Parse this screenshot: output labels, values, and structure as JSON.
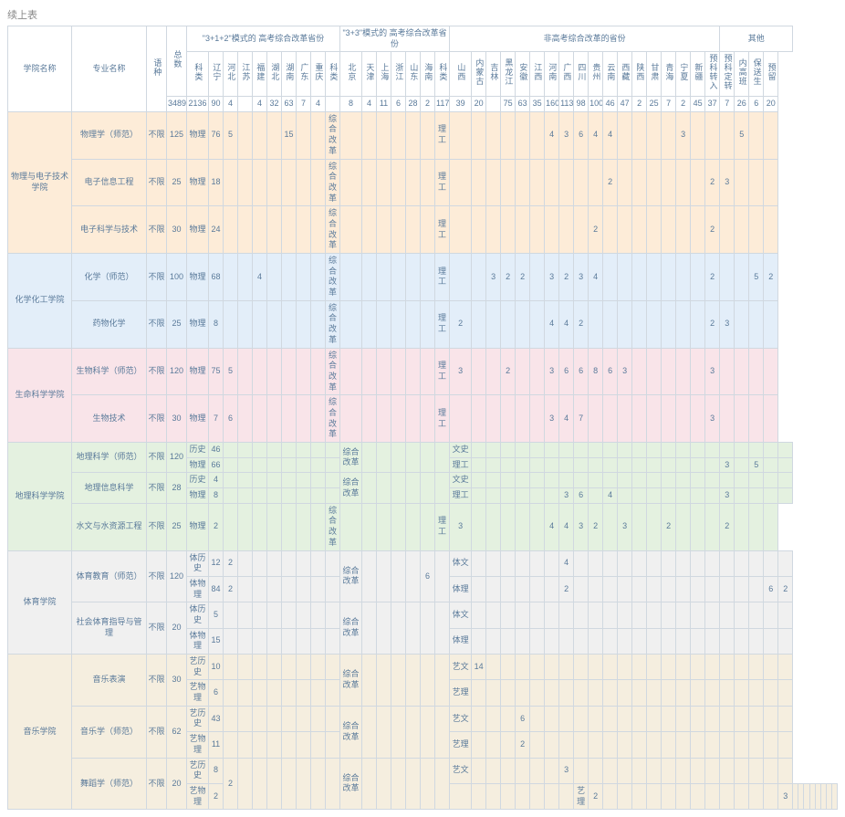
{
  "caption": "续上表",
  "background": "#ffffff",
  "border_color": "#d0d8e0",
  "text_color": "#5a7a9a",
  "font_size": 9,
  "group_colors": {
    "orange": "#fdecd8",
    "blue": "#e3eef9",
    "pink": "#f9e4e9",
    "green": "#e4f1e0",
    "gray": "#f0f0f0",
    "tan": "#f5eedf"
  },
  "headers": {
    "college": "学院名称",
    "major": "专业名称",
    "lang": "语种",
    "total": "总数",
    "g1": "\"3+1+2\"模式的\n高考综合改革省份",
    "g2": "\"3+3\"模式的\n高考综合改革省份",
    "g3": "非高考综合改革的省份",
    "g4": "其他",
    "subtype": "科类",
    "total_sum": "3489",
    "p1": [
      "辽宁",
      "河北",
      "江苏",
      "福建",
      "湖北",
      "湖南",
      "广东",
      "重庆"
    ],
    "p1_sum": [
      "2136",
      "90",
      "4",
      "",
      "4",
      "32",
      "63",
      "7",
      "4"
    ],
    "p2": [
      "北京",
      "天津",
      "上海",
      "浙江",
      "山东",
      "海南"
    ],
    "p2_sum": [
      "8",
      "4",
      "11",
      "6",
      "28",
      "2"
    ],
    "p3": [
      "山西",
      "内蒙古",
      "吉林",
      "黑龙江",
      "安徽",
      "江西",
      "河南",
      "广西",
      "四川",
      "贵州",
      "云南",
      "西藏",
      "陕西",
      "甘肃",
      "青海",
      "宁夏",
      "新疆"
    ],
    "p3_sum": [
      "117",
      "39",
      "20",
      "",
      "75",
      "63",
      "35",
      "160",
      "113",
      "98",
      "100",
      "46",
      "47",
      "2",
      "25",
      "7",
      "2",
      "45"
    ],
    "p4": [
      "预科转入",
      "预科定转",
      "内高班",
      "保送生",
      "预留"
    ],
    "p4_sum": [
      "37",
      "7",
      "26",
      "6",
      "20"
    ]
  },
  "rows": [
    {
      "college": "物理与电子技术学院",
      "span": 3,
      "major": "物理学（师范）",
      "lang": "不限",
      "total": "125",
      "type": "物理",
      "g1": [
        "76",
        "5",
        "",
        "",
        "",
        "15",
        "",
        ""
      ],
      "g2t": "综合改革",
      "g2": [
        "",
        "",
        "",
        "",
        "",
        ""
      ],
      "g3t": "理工",
      "g3": [
        "",
        "",
        "",
        "",
        "",
        "",
        "4",
        "3",
        "6",
        "4",
        "4",
        "",
        "",
        "",
        "",
        "3"
      ],
      "g4": [
        "",
        "",
        "5",
        "",
        ""
      ],
      "cls": "bg-orange"
    },
    {
      "major": "电子信息工程",
      "lang": "不限",
      "total": "25",
      "type": "物理",
      "g1": [
        "18",
        "",
        "",
        "",
        "",
        "",
        "",
        ""
      ],
      "g2t": "综合改革",
      "g2": [
        "",
        "",
        "",
        "",
        "",
        ""
      ],
      "g3t": "理工",
      "g3": [
        "",
        "",
        "",
        "",
        "",
        "",
        "",
        "",
        "",
        "",
        "2",
        "",
        "",
        "",
        "",
        ""
      ],
      "g4": [
        "2",
        "3",
        "",
        "",
        ""
      ],
      "cls": "bg-orange"
    },
    {
      "major": "电子科学与技术",
      "lang": "不限",
      "total": "30",
      "type": "物理",
      "g1": [
        "24",
        "",
        "",
        "",
        "",
        "",
        "",
        ""
      ],
      "g2t": "综合改革",
      "g2": [
        "",
        "",
        "",
        "",
        "",
        ""
      ],
      "g3t": "理工",
      "g3": [
        "",
        "",
        "",
        "",
        "",
        "",
        "",
        "",
        "",
        "2",
        "",
        "",
        "",
        "",
        "",
        ""
      ],
      "g4": [
        "2",
        "",
        "",
        "",
        ""
      ],
      "cls": "bg-orange"
    },
    {
      "college": "化学化工学院",
      "span": 2,
      "major": "化学（师范）",
      "lang": "不限",
      "total": "100",
      "type": "物理",
      "g1": [
        "68",
        "",
        "",
        "4",
        "",
        "",
        "",
        ""
      ],
      "g2t": "综合改革",
      "g2": [
        "",
        "",
        "",
        "",
        "",
        ""
      ],
      "g3t": "理工",
      "g3": [
        "",
        "",
        "3",
        "2",
        "2",
        "",
        "3",
        "2",
        "3",
        "4",
        "",
        "",
        "",
        "",
        "",
        ""
      ],
      "g4": [
        "2",
        "",
        "",
        "5",
        "2"
      ],
      "cls": "bg-blue"
    },
    {
      "major": "药物化学",
      "lang": "不限",
      "total": "25",
      "type": "物理",
      "g1": [
        "8",
        "",
        "",
        "",
        "",
        "",
        "",
        ""
      ],
      "g2t": "综合改革",
      "g2": [
        "",
        "",
        "",
        "",
        "",
        ""
      ],
      "g3t": "理工",
      "g3": [
        "2",
        "",
        "",
        "",
        "",
        "",
        "4",
        "4",
        "2",
        "",
        "",
        "",
        "",
        "",
        "",
        ""
      ],
      "g4": [
        "2",
        "3",
        "",
        "",
        ""
      ],
      "cls": "bg-blue"
    },
    {
      "college": "生命科学学院",
      "span": 2,
      "major": "生物科学（师范）",
      "lang": "不限",
      "total": "120",
      "type": "物理",
      "g1": [
        "75",
        "5",
        "",
        "",
        "",
        "",
        "",
        ""
      ],
      "g2t": "综合改革",
      "g2": [
        "",
        "",
        "",
        "",
        "",
        ""
      ],
      "g3t": "理工",
      "g3": [
        "3",
        "",
        "",
        "2",
        "",
        "",
        "3",
        "6",
        "6",
        "8",
        "6",
        "3",
        "",
        "",
        "",
        ""
      ],
      "g4": [
        "3",
        "",
        "",
        "",
        ""
      ],
      "cls": "bg-pink"
    },
    {
      "major": "生物技术",
      "lang": "不限",
      "total": "30",
      "type": "物理",
      "g1": [
        "7",
        "6",
        "",
        "",
        "",
        "",
        "",
        ""
      ],
      "g2t": "综合改革",
      "g2": [
        "",
        "",
        "",
        "",
        "",
        ""
      ],
      "g3t": "理工",
      "g3": [
        "",
        "",
        "",
        "",
        "",
        "",
        "3",
        "4",
        "7",
        "",
        "",
        "",
        "",
        "",
        "",
        ""
      ],
      "g4": [
        "3",
        "",
        "",
        "",
        ""
      ],
      "cls": "bg-pink"
    },
    {
      "college": "地理科学学院",
      "span": 5,
      "major": "地理科学（师范）",
      "majspan": 2,
      "lang": "不限",
      "total": "120",
      "type": "历史",
      "typeval": "46",
      "g1": [
        "",
        "",
        "",
        "",
        "",
        "",
        "",
        ""
      ],
      "g2t": "综合改革",
      "g2span": 2,
      "g2": [
        "",
        "",
        "",
        "",
        "",
        ""
      ],
      "g3t": "文史",
      "g3": [
        "",
        "",
        "",
        "",
        "",
        "",
        "",
        "",
        "",
        "",
        "",
        "",
        "",
        "",
        "",
        ""
      ],
      "g4": [
        "",
        "",
        "",
        "",
        ""
      ],
      "cls": "bg-green"
    },
    {
      "type": "物理",
      "typeval": "66",
      "g1": [
        "",
        "",
        "",
        "",
        "",
        "",
        "",
        ""
      ],
      "g3t": "理工",
      "g3": [
        "",
        "",
        "",
        "",
        "",
        "",
        "",
        "",
        "",
        "",
        "",
        "",
        "",
        "",
        "",
        ""
      ],
      "g4": [
        "3",
        "",
        "5",
        "",
        ""
      ],
      "cls": "bg-green"
    },
    {
      "major": "地理信息科学",
      "majspan": 2,
      "lang": "不限",
      "total": "28",
      "type": "历史",
      "typeval": "4",
      "g1": [
        "",
        "",
        "",
        "",
        "",
        "",
        "",
        ""
      ],
      "g2t": "综合改革",
      "g2span": 2,
      "g2": [
        "",
        "",
        "",
        "",
        "",
        ""
      ],
      "g3t": "文史",
      "g3": [
        "",
        "",
        "",
        "",
        "",
        "",
        "",
        "",
        "",
        "",
        "",
        "",
        "",
        "",
        "",
        ""
      ],
      "g4": [
        "",
        "",
        "",
        "",
        ""
      ],
      "cls": "bg-green"
    },
    {
      "type": "物理",
      "typeval": "8",
      "g1": [
        "",
        "",
        "",
        "",
        "",
        "",
        "",
        ""
      ],
      "g3t": "理工",
      "g3": [
        "",
        "",
        "",
        "",
        "",
        "",
        "3",
        "6",
        "",
        "4",
        "",
        "",
        "",
        "",
        "",
        ""
      ],
      "g4": [
        "3",
        "",
        "",
        "",
        ""
      ],
      "cls": "bg-green"
    },
    {
      "major": "水文与水资源工程",
      "lang": "不限",
      "total": "25",
      "type": "物理",
      "g1": [
        "2",
        "",
        "",
        "",
        "",
        "",
        "",
        ""
      ],
      "g2t": "综合改革",
      "g2": [
        "",
        "",
        "",
        "",
        "",
        ""
      ],
      "g3t": "理工",
      "g3": [
        "3",
        "",
        "",
        "",
        "",
        "",
        "4",
        "4",
        "3",
        "2",
        "",
        "3",
        "",
        "",
        "2",
        ""
      ],
      "g4": [
        "",
        "2",
        "",
        "",
        ""
      ],
      "cls": "bg-green"
    },
    {
      "college": "体育学院",
      "span": 4,
      "major": "体育教育（师范）",
      "majspan": 2,
      "lang": "不限",
      "total": "120",
      "type": "体历史",
      "typeval": "12",
      "g1": [
        "2",
        "",
        "",
        "",
        "",
        "",
        "",
        ""
      ],
      "g2t": "综合改革",
      "g2span": 2,
      "g2": [
        "",
        "",
        "",
        "",
        "6",
        ""
      ],
      "g3t": "体文",
      "g3": [
        "",
        "",
        "",
        "",
        "",
        "",
        "4",
        "",
        "",
        "",
        "",
        "",
        "",
        "",
        "",
        ""
      ],
      "g4": [
        "",
        "",
        "",
        "",
        ""
      ],
      "cls": "bg-gray"
    },
    {
      "type": "体物理",
      "typeval": "84",
      "g1": [
        "2",
        "",
        "",
        "",
        "",
        "",
        "",
        ""
      ],
      "g3t": "体理",
      "g3": [
        "",
        "",
        "",
        "",
        "",
        "",
        "2",
        "",
        "",
        "",
        "",
        "",
        "",
        "",
        "",
        ""
      ],
      "g4": [
        "",
        "",
        "",
        "6",
        "2"
      ],
      "cls": "bg-gray"
    },
    {
      "major": "社会体育指导与管理",
      "majspan": 2,
      "lang": "不限",
      "total": "20",
      "type": "体历史",
      "typeval": "5",
      "g1": [
        "",
        "",
        "",
        "",
        "",
        "",
        "",
        ""
      ],
      "g2t": "综合改革",
      "g2span": 2,
      "g2": [
        "",
        "",
        "",
        "",
        "",
        ""
      ],
      "g3t": "体文",
      "g3": [
        "",
        "",
        "",
        "",
        "",
        "",
        "",
        "",
        "",
        "",
        "",
        "",
        "",
        "",
        "",
        ""
      ],
      "g4": [
        "",
        "",
        "",
        "",
        ""
      ],
      "cls": "bg-gray"
    },
    {
      "type": "体物理",
      "typeval": "15",
      "g1": [
        "",
        "",
        "",
        "",
        "",
        "",
        "",
        ""
      ],
      "g3t": "体理",
      "g3": [
        "",
        "",
        "",
        "",
        "",
        "",
        "",
        "",
        "",
        "",
        "",
        "",
        "",
        "",
        "",
        ""
      ],
      "g4": [
        "",
        "",
        "",
        "",
        ""
      ],
      "cls": "bg-gray"
    },
    {
      "college": "音乐学院",
      "span": 6,
      "major": "音乐表演",
      "majspan": 2,
      "lang": "不限",
      "total": "30",
      "type": "艺历史",
      "typeval": "10",
      "g1": [
        "",
        "",
        "",
        "",
        "",
        "",
        "",
        ""
      ],
      "g2t": "综合改革",
      "g2span": 2,
      "g2": [
        "",
        "",
        "",
        "",
        "",
        ""
      ],
      "g3t": "艺文",
      "g3": [
        "14",
        "",
        "",
        "",
        "",
        "",
        "",
        "",
        "",
        "",
        "",
        "",
        "",
        "",
        "",
        ""
      ],
      "g4": [
        "",
        "",
        "",
        "",
        ""
      ],
      "cls": "bg-tan"
    },
    {
      "type": "艺物理",
      "typeval": "6",
      "g1": [
        "",
        "",
        "",
        "",
        "",
        "",
        "",
        ""
      ],
      "g3t": "艺理",
      "g3": [
        "",
        "",
        "",
        "",
        "",
        "",
        "",
        "",
        "",
        "",
        "",
        "",
        "",
        "",
        "",
        ""
      ],
      "g4": [
        "",
        "",
        "",
        "",
        ""
      ],
      "cls": "bg-tan"
    },
    {
      "college_skip": true,
      "major": "音乐学（师范）",
      "majspan": 2,
      "lang": "不限",
      "total": "62",
      "type": "艺历史",
      "typeval": "43",
      "g1": [
        "",
        "",
        "",
        "",
        "",
        "",
        "",
        ""
      ],
      "g2t": "综合改革",
      "g2span": 2,
      "g2": [
        "",
        "",
        "",
        "",
        "",
        ""
      ],
      "g3t": "艺文",
      "g3": [
        "",
        "",
        "",
        "6",
        "",
        "",
        "",
        "",
        "",
        "",
        "",
        "",
        "",
        "",
        "",
        ""
      ],
      "g4": [
        "",
        "",
        "",
        "",
        ""
      ],
      "cls": "bg-tan"
    },
    {
      "type": "艺物理",
      "typeval": "11",
      "g1": [
        "",
        "",
        "",
        "",
        "",
        "",
        "",
        ""
      ],
      "g3t": "艺理",
      "g3": [
        "",
        "",
        "",
        "2",
        "",
        "",
        "",
        "",
        "",
        "",
        "",
        "",
        "",
        "",
        "",
        ""
      ],
      "g4": [
        "",
        "",
        "",
        "",
        ""
      ],
      "cls": "bg-tan"
    },
    {
      "college_skip": true,
      "major": "舞蹈学（师范）",
      "majspan": 2,
      "lang": "不限",
      "total": "20",
      "type": "艺历史",
      "typeval": "8",
      "g1span": 2,
      "g1": [
        "2",
        "",
        "",
        "",
        "",
        "",
        "",
        ""
      ],
      "g2t": "综合改革",
      "g2span": 2,
      "g2": [
        "",
        "",
        "",
        "",
        "",
        ""
      ],
      "g3t": "艺文",
      "g3": [
        "",
        "",
        "",
        "",
        "",
        "",
        "3",
        "",
        "",
        "",
        "",
        "",
        "",
        "",
        "",
        ""
      ],
      "g4": [
        "",
        "",
        "",
        "",
        ""
      ],
      "cls": "bg-tan"
    },
    {
      "type": "艺物理",
      "typeval": "2",
      "g1": [
        "",
        "",
        "",
        "",
        "",
        "",
        "",
        ""
      ],
      "g3t": "艺理",
      "g3": [
        "2",
        "",
        "",
        "",
        "",
        "",
        "",
        "",
        "",
        "",
        "",
        "",
        "",
        "3",
        "",
        ""
      ],
      "g4": [
        "",
        "",
        "",
        "",
        ""
      ],
      "cls": "bg-tan"
    }
  ]
}
